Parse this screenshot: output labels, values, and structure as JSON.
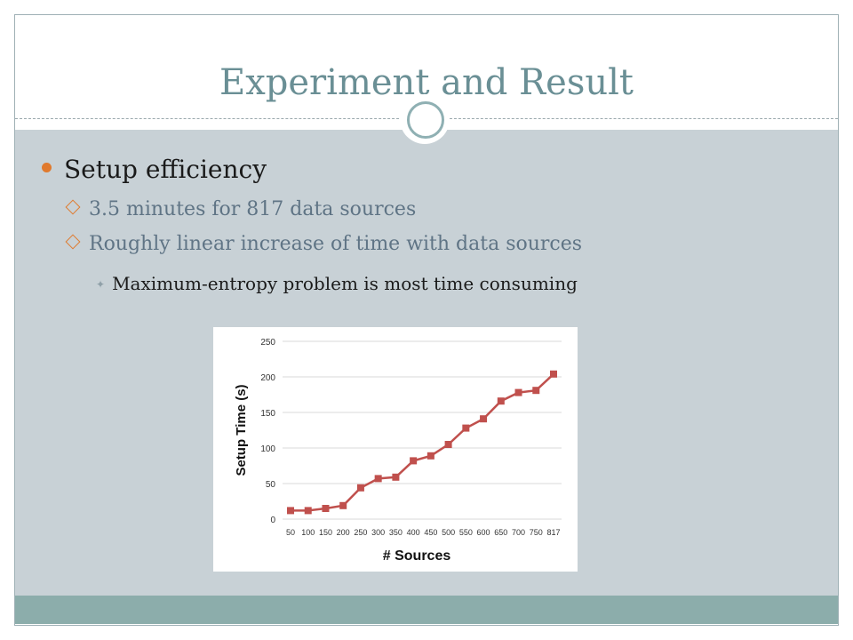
{
  "slide": {
    "title": "Experiment and Result",
    "bullets": {
      "level1": "Setup efficiency",
      "level2": [
        "3.5 minutes for 817 data sources",
        "Roughly linear increase of time with data sources"
      ],
      "level3": "Maximum-entropy problem is most time consuming"
    }
  },
  "colors": {
    "accent_orange": "#e07a2e",
    "line_red": "#c0504d",
    "title_teal": "#6a8f95",
    "content_bg": "#c8d1d6",
    "footer_bar": "#8cadab"
  },
  "chart_data": {
    "type": "line",
    "categories": [
      "50",
      "100",
      "150",
      "200",
      "250",
      "300",
      "350",
      "400",
      "450",
      "500",
      "550",
      "600",
      "650",
      "700",
      "750",
      "817"
    ],
    "series": [
      {
        "values": [
          12,
          12,
          15,
          19,
          44,
          57,
          59,
          82,
          89,
          105,
          128,
          141,
          166,
          178,
          181,
          204
        ]
      }
    ],
    "xlabel": "# Sources",
    "ylabel": "Setup Time (s)",
    "ylim": [
      0,
      250
    ],
    "yticks": [
      0,
      50,
      100,
      150,
      200,
      250
    ],
    "grid": true,
    "marker": "square"
  }
}
